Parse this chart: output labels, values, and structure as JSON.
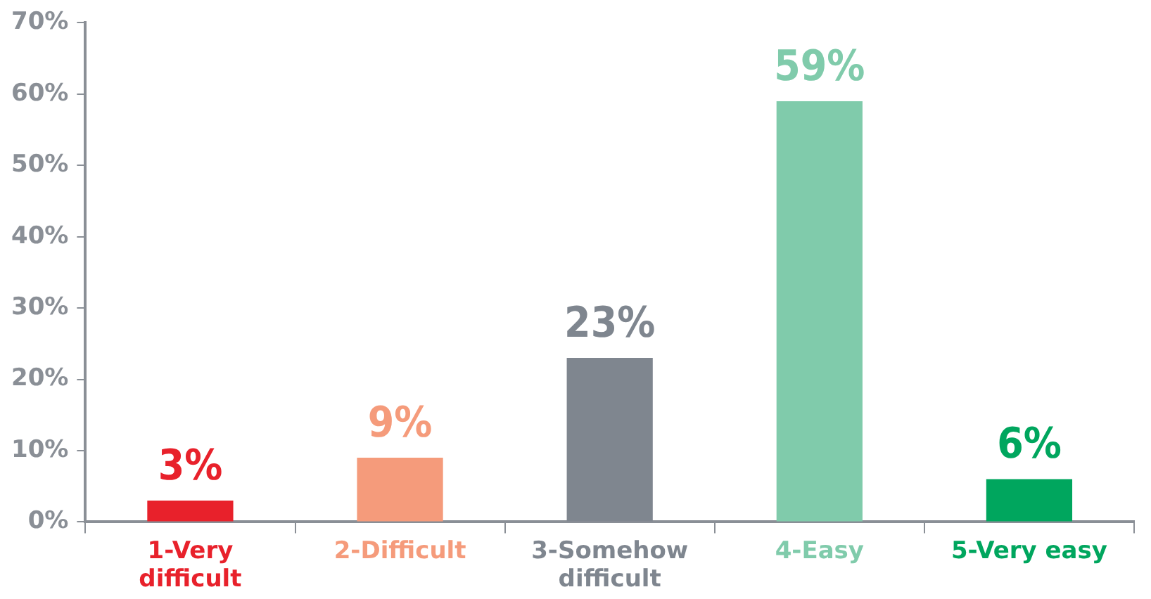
{
  "chart_data": {
    "type": "bar",
    "categories": [
      "1-Very difficult",
      "2-Difficult",
      "3-Somehow difficult",
      "4-Easy",
      "5-Very easy"
    ],
    "values": [
      3,
      9,
      23,
      59,
      6
    ],
    "colors": [
      "#e8212b",
      "#f59b7b",
      "#7f868f",
      "#80cbab",
      "#00a65e"
    ],
    "value_labels": [
      "3%",
      "9%",
      "23%",
      "59%",
      "6%"
    ],
    "ylim": [
      0,
      70
    ],
    "yticks": [
      {
        "value": 0,
        "label": "0%"
      },
      {
        "value": 10,
        "label": "10%"
      },
      {
        "value": 20,
        "label": "20%"
      },
      {
        "value": 30,
        "label": "30%"
      },
      {
        "value": 40,
        "label": "40%"
      },
      {
        "value": 50,
        "label": "50%"
      },
      {
        "value": 60,
        "label": "60%"
      },
      {
        "value": 70,
        "label": "70%"
      }
    ],
    "grid": false,
    "legend": false
  }
}
